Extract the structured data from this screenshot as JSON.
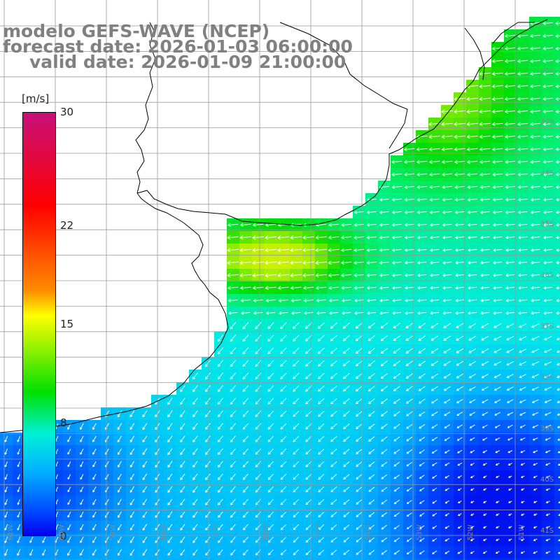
{
  "title": {
    "model": "modelo GEFS-WAVE (NCEP)",
    "forecast": "forecast date: 2026-01-03 06:00:00",
    "valid": "valid date: 2026-01-09 21:00:00"
  },
  "colorbar": {
    "units": "[m/s]",
    "ticks": [
      {
        "label": "30",
        "value": 30
      },
      {
        "label": "22",
        "value": 22
      },
      {
        "label": "15",
        "value": 15
      },
      {
        "label": "8",
        "value": 8
      },
      {
        "label": "0",
        "value": 0
      }
    ],
    "range": [
      0,
      30
    ]
  },
  "latitude_labels": [
    "32S",
    "33S",
    "34S",
    "35S",
    "36S",
    "37S",
    "38S",
    "39S",
    "40S",
    "41S"
  ],
  "longitude_labels": [
    "61W",
    "60W",
    "59W",
    "58W",
    "57W",
    "56W",
    "55W",
    "54W",
    "53W",
    "52W",
    "51W"
  ],
  "colors": {
    "land": "#ffffff",
    "coast": "#000000",
    "grid": "#9a9a9a",
    "arrows": "#ffffff",
    "title": "#808080"
  }
}
